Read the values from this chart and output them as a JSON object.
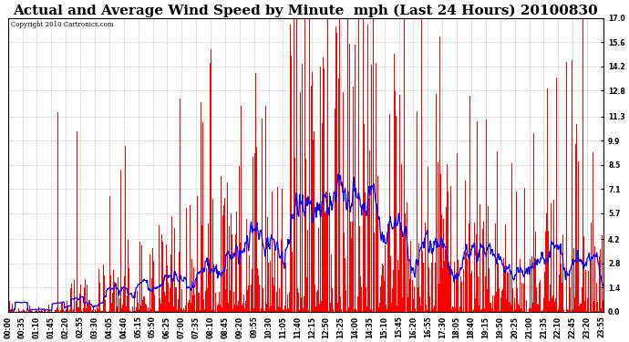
{
  "title": "Actual and Average Wind Speed by Minute  mph (Last 24 Hours) 20100830",
  "copyright": "Copyright 2010 Cartronics.com",
  "yticks": [
    0.0,
    1.4,
    2.8,
    4.2,
    5.7,
    7.1,
    8.5,
    9.9,
    11.3,
    12.8,
    14.2,
    15.6,
    17.0
  ],
  "ymax": 17.0,
  "ymin": 0.0,
  "bar_color": "#FF0000",
  "line_color": "#0000FF",
  "bg_color": "#FFFFFF",
  "grid_color": "#AAAAAA",
  "title_fontsize": 11,
  "tick_label_fontsize": 5.5,
  "figwidth": 6.9,
  "figheight": 3.75,
  "dpi": 100
}
